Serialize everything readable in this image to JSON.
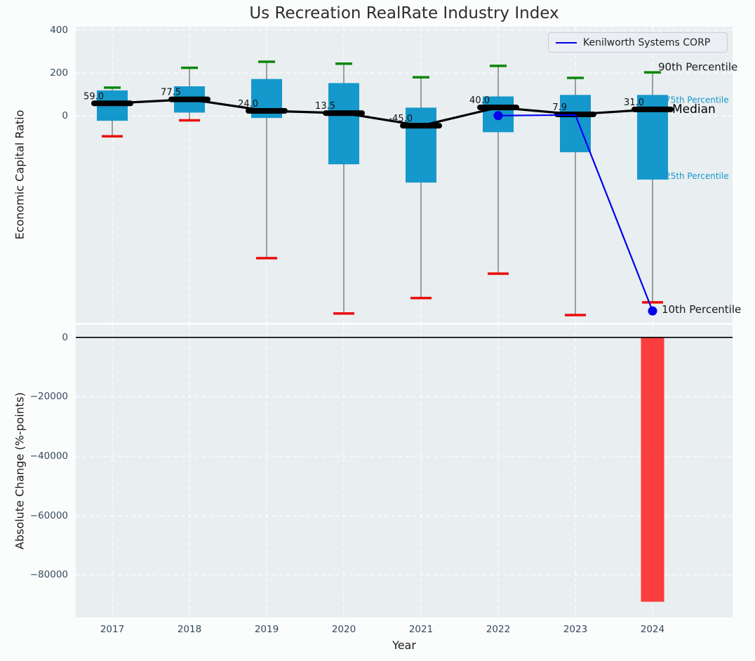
{
  "chart_data": [
    {
      "type": "boxplot",
      "title": "Us Recreation RealRate Industry Index",
      "ylabel": "Economic Capital Ratio",
      "categories": [
        "2017",
        "2018",
        "2019",
        "2020",
        "2021",
        "2022",
        "2023",
        "2024"
      ],
      "yticks": [
        400,
        200,
        0
      ],
      "ylim": [
        -960,
        415
      ],
      "grid": true,
      "legend_position": "upper right",
      "percentiles": {
        "p90": [
          132,
          224,
          252,
          243,
          180,
          233,
          177,
          203
        ],
        "p75": [
          119,
          138,
          172,
          153,
          39,
          91,
          98,
          98
        ],
        "median": [
          59.0,
          77.5,
          24.0,
          13.5,
          -45.0,
          40.0,
          7.9,
          31.0
        ],
        "p25": [
          -22,
          16,
          -9,
          -224,
          -309,
          -75,
          -168,
          -295
        ],
        "p10": [
          -94,
          -20,
          -660,
          -917,
          -845,
          -732,
          -924,
          -865
        ]
      },
      "median_labels": [
        "59.0",
        "77.5",
        "24.0",
        "13.5",
        "-45.0",
        "40.0",
        "7.9",
        "31.0"
      ],
      "company_line": {
        "name": "Kenilworth Systems CORP",
        "color": "#0000ee",
        "x": [
          "2022",
          "2023",
          "2024"
        ],
        "y": [
          2,
          5,
          -905
        ],
        "marker_years": [
          "2022",
          "2024"
        ]
      },
      "annotations": [
        {
          "key": "p90",
          "text": "90th Percentile",
          "color": "#1a1a1a"
        },
        {
          "key": "p75",
          "text": "75th Percentile",
          "color": "#1598cc"
        },
        {
          "key": "median",
          "text": "Median",
          "color": "#000000"
        },
        {
          "key": "p25",
          "text": "25th Percentile",
          "color": "#1598cc"
        },
        {
          "key": "p10",
          "text": "10th Percentile",
          "color": "#1a1a1a"
        }
      ],
      "colors": {
        "box": "#1598cc",
        "p90_cap": "#0b870b",
        "p10_cap": "#ea0c0c",
        "median_line": "#000000",
        "whisker": "#787878"
      }
    },
    {
      "type": "bar",
      "ylabel": "Absolute Change (%-points)",
      "xlabel": "Year",
      "categories": [
        "2017",
        "2018",
        "2019",
        "2020",
        "2021",
        "2022",
        "2023",
        "2024"
      ],
      "values": [
        0,
        0,
        0,
        0,
        0,
        0,
        0,
        -89000
      ],
      "yticks": [
        0,
        -20000,
        -40000,
        -60000,
        -80000
      ],
      "ylim": [
        -94300,
        4200
      ],
      "grid": true,
      "bar_color": "#fa3d3d",
      "zero_line": true
    }
  ]
}
